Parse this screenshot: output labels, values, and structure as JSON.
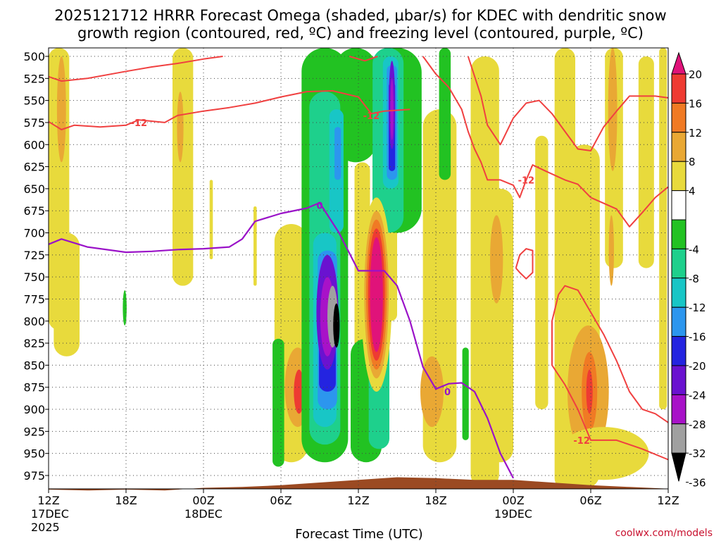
{
  "chart_data": {
    "type": "heatmap",
    "title": [
      "2025121712 HRRR Forecast Omega (shaded, μbar/s) for KDEC with dendritic snow",
      "growth region (contoured, red, ºC) and freezing level (contoured, purple, ºC)"
    ],
    "xlabel": "Forecast Time (UTC)",
    "credit": "coolwx.com/models",
    "x_ticks": [
      {
        "h": 0,
        "lines": [
          "12Z",
          "17DEC",
          "2025"
        ]
      },
      {
        "h": 6,
        "lines": [
          "18Z"
        ]
      },
      {
        "h": 12,
        "lines": [
          "00Z",
          "18DEC"
        ]
      },
      {
        "h": 18,
        "lines": [
          "06Z"
        ]
      },
      {
        "h": 24,
        "lines": [
          "12Z"
        ]
      },
      {
        "h": 30,
        "lines": [
          "18Z"
        ]
      },
      {
        "h": 36,
        "lines": [
          "00Z",
          "19DEC"
        ]
      },
      {
        "h": 42,
        "lines": [
          "06Z"
        ]
      },
      {
        "h": 48,
        "lines": [
          "12Z"
        ]
      }
    ],
    "xlim_hours": [
      0,
      48
    ],
    "y_ticks": [
      500,
      525,
      550,
      575,
      600,
      625,
      650,
      675,
      700,
      725,
      750,
      775,
      800,
      825,
      850,
      875,
      900,
      925,
      950,
      975
    ],
    "ylim_mb": [
      500,
      975
    ],
    "grid": true,
    "colorbar": {
      "labels": [
        "20",
        "16",
        "12",
        "8",
        "4",
        "-4",
        "-8",
        "-12",
        "-16",
        "-20",
        "-24",
        "-28",
        "-32",
        "-36"
      ],
      "colors": [
        "#e0137a",
        "#ee3b32",
        "#f07a24",
        "#e9a834",
        "#e8da3c",
        "#ffffff",
        "#22c222",
        "#1ed08c",
        "#18c6c6",
        "#2c96ee",
        "#2424e0",
        "#6a12d0",
        "#a812c8",
        "#a0a0a0",
        "#000000"
      ]
    },
    "contour_labels": {
      "dgz": "-12",
      "freezing": "0"
    },
    "dgz_color": "#f04040",
    "freezing_color": "#9a12c8",
    "terrain_color": "#9b4a22",
    "dgz_contours": [
      [
        [
          0,
          523
        ],
        [
          1,
          528
        ],
        [
          3,
          525
        ],
        [
          6,
          517
        ],
        [
          8,
          512
        ],
        [
          10,
          508
        ],
        [
          12,
          503
        ],
        [
          13.5,
          500
        ]
      ],
      [
        [
          0,
          574
        ],
        [
          1,
          583
        ],
        [
          2,
          578
        ],
        [
          4,
          580
        ],
        [
          6,
          578
        ],
        [
          7,
          572
        ],
        [
          9,
          575
        ],
        [
          10,
          567
        ],
        [
          12,
          562
        ],
        [
          14,
          558
        ],
        [
          16,
          553
        ],
        [
          18,
          546
        ],
        [
          20,
          540
        ],
        [
          22,
          539
        ],
        [
          24,
          546
        ],
        [
          25,
          565
        ],
        [
          26,
          562
        ],
        [
          28,
          560
        ]
      ],
      [
        [
          23.3,
          500
        ],
        [
          24.5,
          505
        ],
        [
          25.5,
          500
        ]
      ],
      [
        [
          29,
          500
        ],
        [
          29.5,
          510
        ],
        [
          30,
          520
        ],
        [
          31,
          535
        ],
        [
          32,
          560
        ],
        [
          32.5,
          585
        ],
        [
          33,
          605
        ],
        [
          33.5,
          620
        ],
        [
          34,
          640
        ],
        [
          35,
          640
        ],
        [
          36,
          646
        ],
        [
          36.5,
          660
        ],
        [
          37,
          640
        ],
        [
          37.5,
          623
        ],
        [
          38.5,
          630
        ],
        [
          40,
          640
        ],
        [
          41,
          645
        ],
        [
          42,
          660
        ],
        [
          44,
          673
        ],
        [
          45,
          693
        ],
        [
          46,
          677
        ],
        [
          47,
          660
        ],
        [
          48,
          648
        ]
      ],
      [
        [
          32.5,
          500
        ],
        [
          33.5,
          545
        ],
        [
          34,
          578
        ],
        [
          35,
          600
        ],
        [
          36,
          570
        ],
        [
          37,
          553
        ],
        [
          38,
          550
        ],
        [
          39,
          565
        ],
        [
          40,
          585
        ],
        [
          41,
          605
        ],
        [
          42,
          607
        ],
        [
          43,
          580
        ],
        [
          44,
          562
        ],
        [
          45,
          545
        ],
        [
          47,
          545
        ],
        [
          48,
          547
        ]
      ],
      [
        [
          36.2,
          740
        ],
        [
          36.5,
          725
        ],
        [
          37,
          718
        ],
        [
          37.5,
          720
        ],
        [
          37.5,
          745
        ],
        [
          37,
          752
        ],
        [
          36.5,
          745
        ],
        [
          36.2,
          740
        ]
      ],
      [
        [
          39.5,
          770
        ],
        [
          40,
          760
        ],
        [
          41,
          765
        ],
        [
          42,
          790
        ],
        [
          43,
          815
        ],
        [
          44,
          845
        ],
        [
          45,
          880
        ],
        [
          46,
          900
        ],
        [
          47,
          905
        ],
        [
          48,
          915
        ]
      ],
      [
        [
          39.5,
          770
        ],
        [
          39,
          800
        ],
        [
          39,
          850
        ],
        [
          40,
          872
        ],
        [
          41,
          900
        ],
        [
          42,
          935
        ],
        [
          44,
          935
        ],
        [
          46,
          945
        ],
        [
          48,
          957
        ]
      ]
    ],
    "freezing_contour": [
      [
        0,
        713
      ],
      [
        1,
        707
      ],
      [
        3,
        716
      ],
      [
        6,
        722
      ],
      [
        8,
        721
      ],
      [
        10,
        719
      ],
      [
        12,
        718
      ],
      [
        14,
        716
      ],
      [
        15,
        707
      ],
      [
        16,
        687
      ],
      [
        18,
        678
      ],
      [
        20,
        672
      ],
      [
        21,
        666
      ],
      [
        22.5,
        700
      ],
      [
        24,
        743
      ],
      [
        26,
        743
      ],
      [
        27,
        760
      ],
      [
        28,
        800
      ],
      [
        29,
        852
      ],
      [
        30,
        877
      ],
      [
        31,
        871
      ],
      [
        32,
        870
      ],
      [
        33,
        880
      ],
      [
        34,
        910
      ],
      [
        35,
        950
      ],
      [
        36,
        978
      ]
    ],
    "terrain_top_mb": [
      [
        0,
        991
      ],
      [
        3,
        992
      ],
      [
        6,
        991
      ],
      [
        9,
        992
      ],
      [
        12,
        989
      ],
      [
        15,
        988
      ],
      [
        18,
        986
      ],
      [
        21,
        983
      ],
      [
        24,
        980
      ],
      [
        27,
        977
      ],
      [
        30,
        978
      ],
      [
        33,
        980
      ],
      [
        36,
        980
      ],
      [
        39,
        983
      ],
      [
        42,
        986
      ],
      [
        45,
        988
      ],
      [
        48,
        990
      ]
    ]
  }
}
